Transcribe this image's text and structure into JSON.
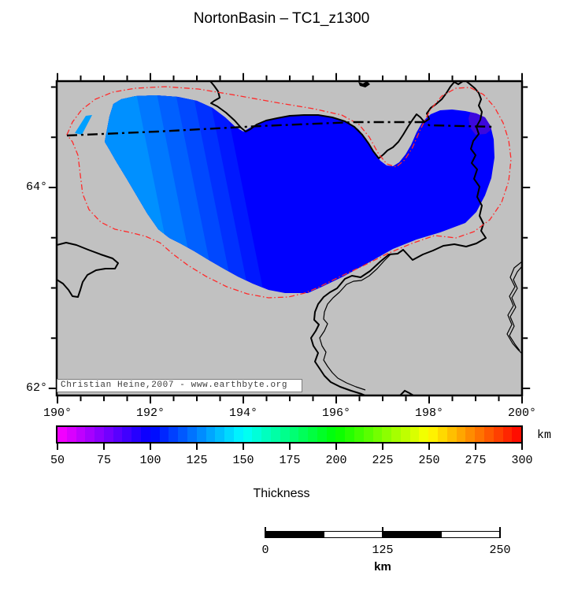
{
  "title": "NortonBasin – TC1_z1300",
  "map": {
    "x_axis": {
      "tick_labels": [
        "190°",
        "192°",
        "194°",
        "196°",
        "198°",
        "200°"
      ]
    },
    "y_axis": {
      "tick_labels": [
        "64°",
        "62°"
      ]
    },
    "watermark": "Christian Heine,2007 - www.earthbyte.org",
    "colors": {
      "land": "#c1c1c1",
      "frame": "#000000",
      "coastline": "#000000",
      "basin_outline_red": "#ff2a2a",
      "boundary_line": "#000000",
      "basin_main": "#0000ff",
      "basin_bands": [
        "#0090ff",
        "#0078ff",
        "#0060ff",
        "#0048ff",
        "#0030ff",
        "#0018ff"
      ],
      "basin_patch_ne": "#3c08dd",
      "basin_sliver_w": "#00a0ff"
    }
  },
  "colorbar": {
    "label": "Thickness",
    "unit": "km",
    "min": 50,
    "max": 300,
    "tick_labels": [
      "50",
      "75",
      "100",
      "125",
      "150",
      "175",
      "200",
      "225",
      "250",
      "275",
      "300"
    ],
    "segments": 50,
    "hue_start": 300,
    "hue_end": 0
  },
  "scalebar": {
    "tick_labels": [
      "0",
      "125",
      "250"
    ],
    "unit": "km",
    "segment_colors": [
      "#000000",
      "#ffffff",
      "#000000",
      "#ffffff"
    ]
  }
}
